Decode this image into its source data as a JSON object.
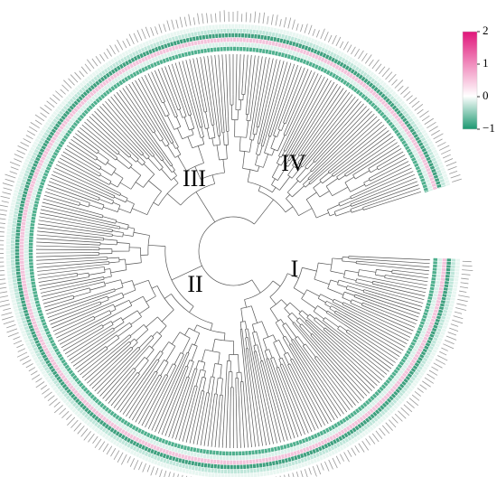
{
  "clades": [
    {
      "label": "I"
    },
    {
      "label": "II"
    },
    {
      "label": "III"
    },
    {
      "label": "IV"
    }
  ],
  "colorbar": {
    "ticks": [
      2,
      1,
      0,
      {
        "value": -1,
        "label": "−1"
      }
    ]
  }
}
